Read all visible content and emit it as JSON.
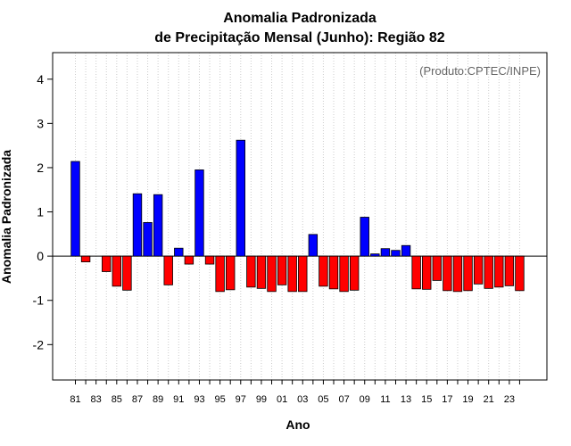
{
  "chart_data": {
    "type": "bar",
    "title_line1": "Anomalia Padronizada",
    "title_line2": "de Precipitação Mensal (Junho): Região 82",
    "xlabel": "Ano",
    "ylabel": "Anomalia Padronizada",
    "source_note": "(Produto:CPTEC/INPE)",
    "ylim": [
      -2.8,
      4.6
    ],
    "yticks": [
      -2,
      -1,
      0,
      1,
      2,
      3,
      4
    ],
    "ytick_labels": [
      "-2",
      "-1",
      "0",
      "1",
      "2",
      "3",
      "4"
    ],
    "grid": "vertical dotted",
    "positive_color": "#0000ff",
    "negative_color": "#ff0000",
    "categories": [
      "81",
      "82",
      "83",
      "84",
      "85",
      "86",
      "87",
      "88",
      "89",
      "90",
      "91",
      "92",
      "93",
      "94",
      "95",
      "96",
      "97",
      "98",
      "99",
      "00",
      "01",
      "02",
      "03",
      "04",
      "05",
      "06",
      "07",
      "08",
      "09",
      "10",
      "11",
      "12",
      "13",
      "14",
      "15",
      "16",
      "17",
      "18",
      "19",
      "20",
      "21",
      "22",
      "23",
      "24"
    ],
    "xtick_labels": [
      "81",
      "83",
      "85",
      "87",
      "89",
      "91",
      "93",
      "95",
      "97",
      "99",
      "01",
      "03",
      "05",
      "07",
      "09",
      "11",
      "13",
      "15",
      "17",
      "19",
      "21",
      "23"
    ],
    "values": [
      2.14,
      -0.13,
      0.0,
      -0.35,
      -0.68,
      -0.77,
      1.41,
      0.76,
      1.39,
      -0.65,
      0.18,
      -0.18,
      1.95,
      -0.18,
      -0.8,
      -0.76,
      2.62,
      -0.7,
      -0.73,
      -0.8,
      -0.65,
      -0.8,
      -0.8,
      0.49,
      -0.68,
      -0.74,
      -0.8,
      -0.77,
      0.88,
      0.05,
      0.17,
      0.13,
      0.24,
      -0.74,
      -0.75,
      -0.55,
      -0.78,
      -0.8,
      -0.78,
      -0.63,
      -0.73,
      -0.7,
      -0.67,
      -0.78
    ]
  }
}
